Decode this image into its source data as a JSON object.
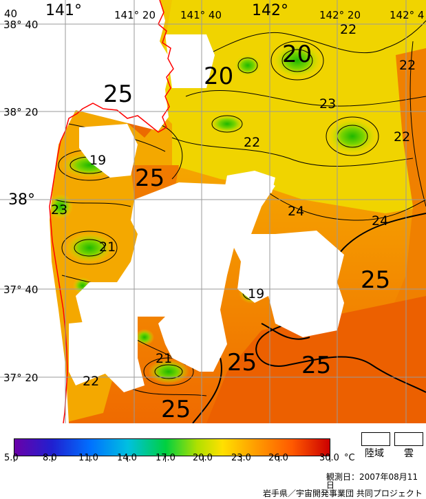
{
  "map": {
    "lat_labels": [
      {
        "text": "38° 40",
        "style": "minor"
      },
      {
        "text": "38° 20",
        "style": "minor"
      },
      {
        "text": "38°",
        "style": "major"
      },
      {
        "text": "37° 40",
        "style": "minor"
      },
      {
        "text": "37° 20",
        "style": "minor"
      }
    ],
    "lon_labels": [
      {
        "text": "40",
        "style": "minor"
      },
      {
        "text": "141°",
        "style": "major"
      },
      {
        "text": "141° 20",
        "style": "minor"
      },
      {
        "text": "141° 40",
        "style": "minor"
      },
      {
        "text": "142°",
        "style": "major"
      },
      {
        "text": "142° 20",
        "style": "minor"
      },
      {
        "text": "142° 4",
        "style": "minor"
      }
    ],
    "contour_labels": [
      {
        "text": "20",
        "style": "big"
      },
      {
        "text": "20",
        "style": "big"
      },
      {
        "text": "22",
        "style": "small"
      },
      {
        "text": "22",
        "style": "small"
      },
      {
        "text": "25",
        "style": "big"
      },
      {
        "text": "23",
        "style": "small"
      },
      {
        "text": "22",
        "style": "small"
      },
      {
        "text": "22",
        "style": "small"
      },
      {
        "text": "19",
        "style": "small"
      },
      {
        "text": "25",
        "style": "big"
      },
      {
        "text": "23",
        "style": "small"
      },
      {
        "text": "24",
        "style": "small"
      },
      {
        "text": "24",
        "style": "small"
      },
      {
        "text": "21",
        "style": "small"
      },
      {
        "text": "25",
        "style": "big"
      },
      {
        "text": "19",
        "style": "small"
      },
      {
        "text": "21",
        "style": "small"
      },
      {
        "text": "25",
        "style": "big"
      },
      {
        "text": "25",
        "style": "big"
      },
      {
        "text": "22",
        "style": "small"
      },
      {
        "text": "25",
        "style": "big"
      }
    ],
    "colors": {
      "coast": "#ff0000",
      "grid": "#9a9a9a",
      "land_cloud": "#ffffff",
      "contour": "#000000"
    }
  },
  "legend": {
    "ticks": [
      "5.0",
      "8.0",
      "11.0",
      "14.0",
      "17.0",
      "20.0",
      "23.0",
      "26.0",
      "30.0"
    ],
    "tick_values": [
      5,
      8,
      11,
      14,
      17,
      20,
      23,
      26,
      30
    ],
    "range": [
      5,
      30
    ],
    "unit": "°C",
    "land_label": "陸域",
    "cloud_label": "雲",
    "observation_date": "観測日：2007年08月11日",
    "credit": "岩手県／宇宙開発事業団 共同プロジェクト"
  }
}
